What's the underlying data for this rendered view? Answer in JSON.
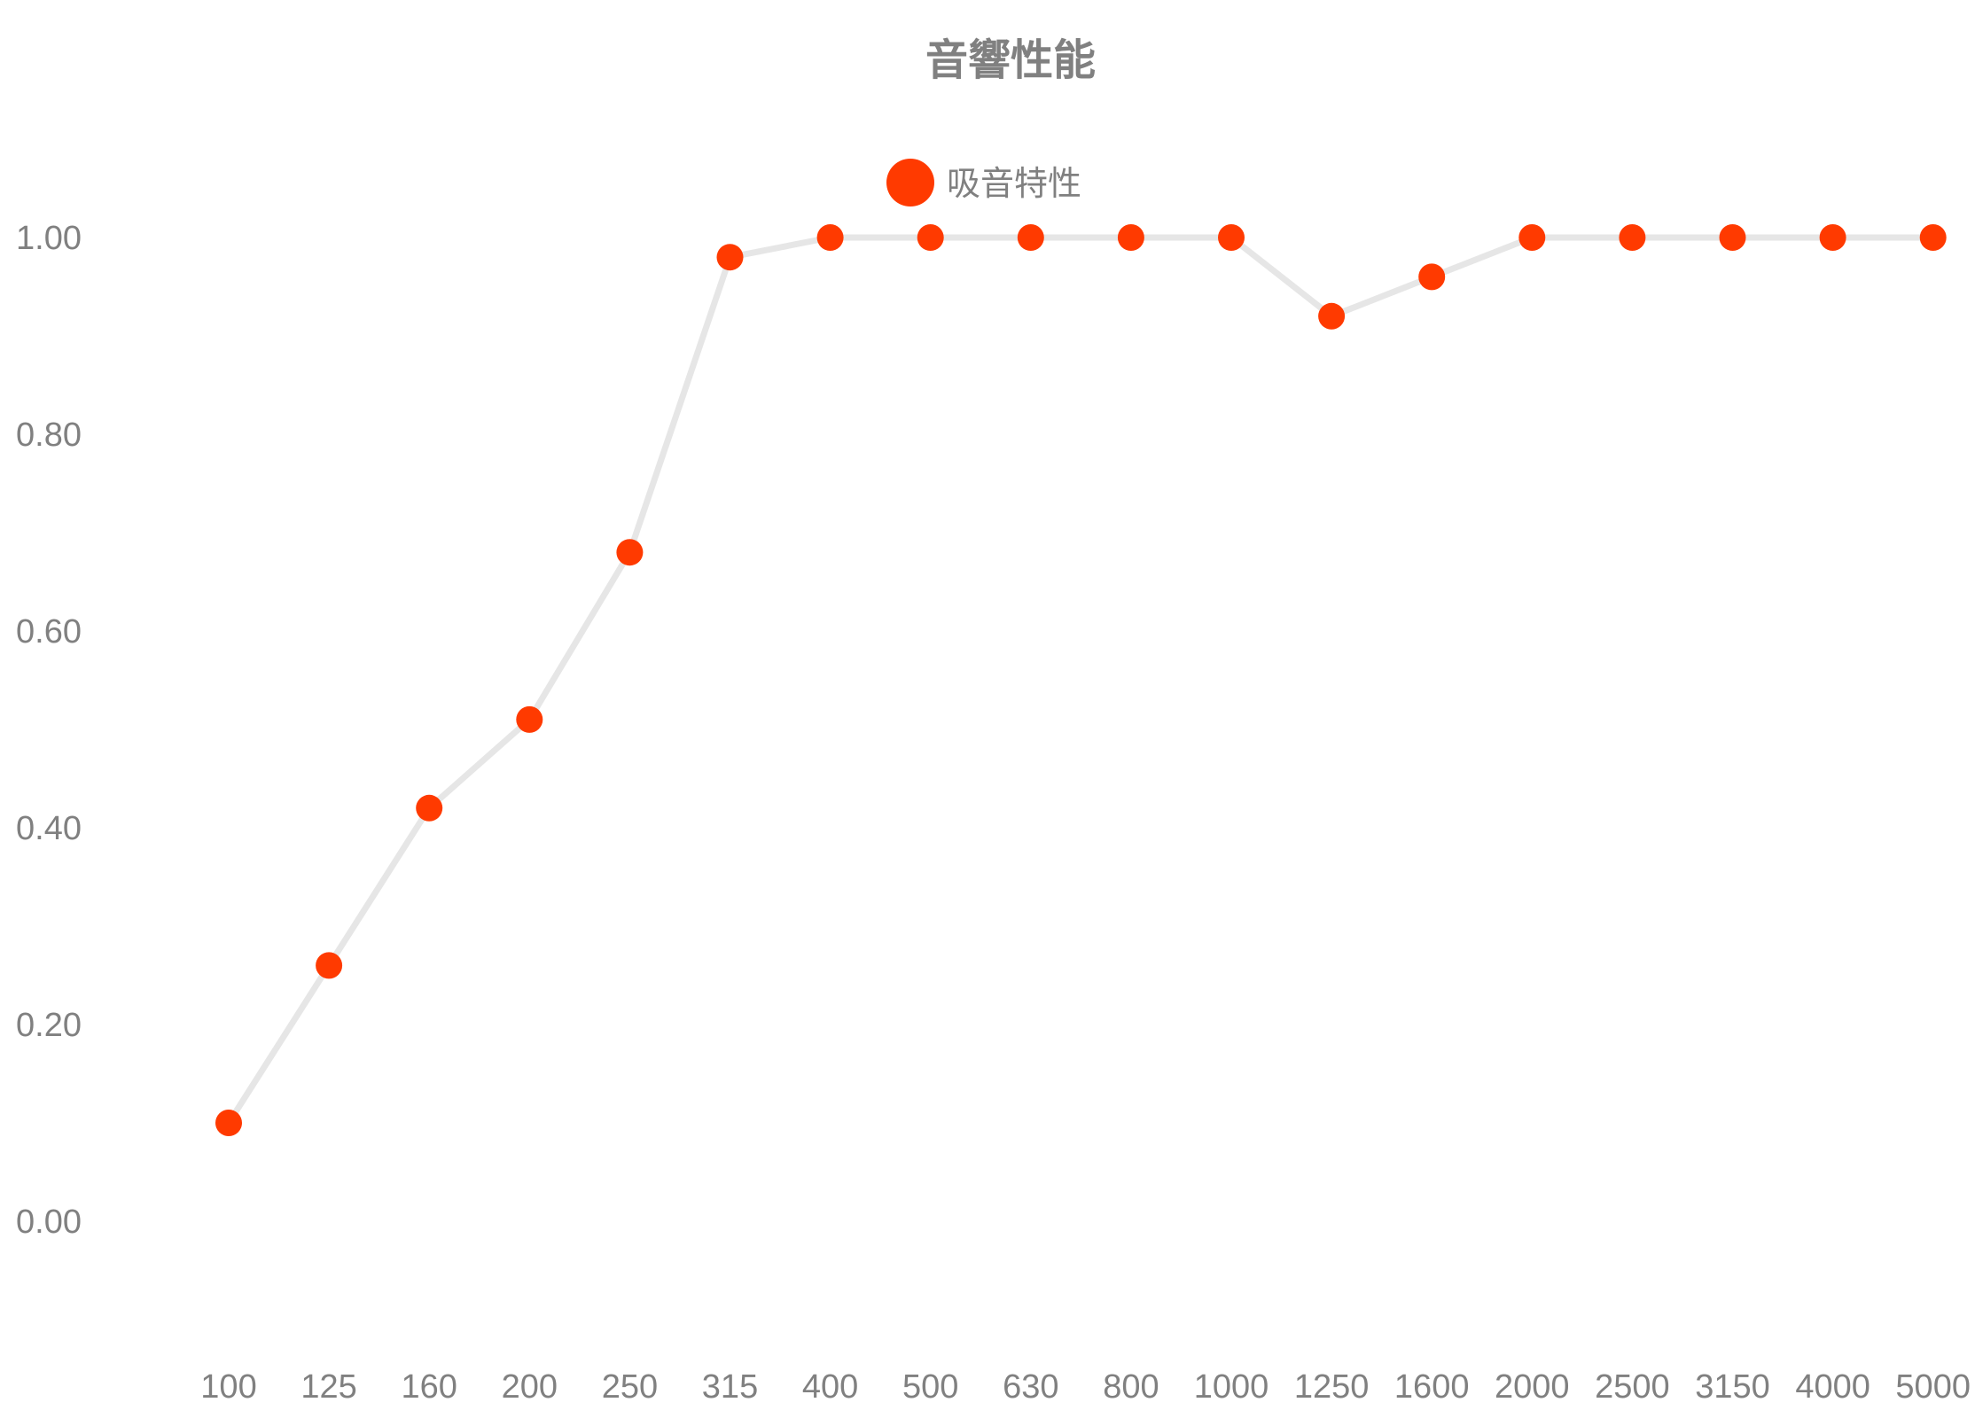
{
  "chart_data": {
    "type": "line",
    "title": "音響性能",
    "xlabel": "",
    "ylabel": "",
    "categories": [
      "100",
      "125",
      "160",
      "200",
      "250",
      "315",
      "400",
      "500",
      "630",
      "800",
      "1000",
      "1250",
      "1600",
      "2000",
      "2500",
      "3150",
      "4000",
      "5000"
    ],
    "y_ticks": [
      "0.00",
      "0.20",
      "0.40",
      "0.60",
      "0.80",
      "1.00"
    ],
    "ylim": [
      -0.1,
      1.15
    ],
    "grid": false,
    "legend_position": "top-center",
    "series": [
      {
        "name": "吸音特性",
        "values": [
          0.1,
          0.26,
          0.42,
          0.51,
          0.68,
          0.98,
          1.0,
          1.0,
          1.0,
          1.0,
          1.0,
          0.92,
          0.96,
          1.0,
          1.0,
          1.0,
          1.0,
          1.0
        ],
        "marker_color": "#ff3a00",
        "line_color": "#e6e6e6"
      }
    ]
  }
}
